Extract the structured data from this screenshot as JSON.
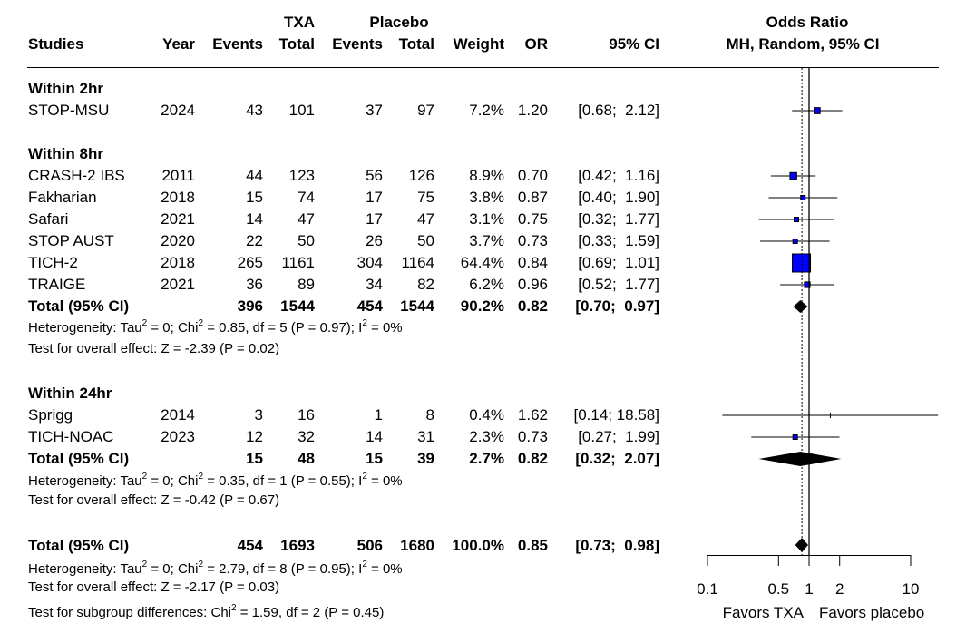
{
  "header": {
    "studies": "Studies",
    "year": "Year",
    "txa_group": "TXA",
    "txa_events": "Events",
    "txa_total": "Total",
    "placebo_group": "Placebo",
    "placebo_events": "Events",
    "placebo_total": "Total",
    "weight": "Weight",
    "or": "OR",
    "ci": "95% CI",
    "plot_title": "Odds Ratio",
    "plot_subtitle": "MH, Random, 95% CI"
  },
  "chart_data": {
    "type": "forest",
    "title": "Odds Ratio",
    "subtitle": "MH, Random, 95% CI",
    "xscale": "log",
    "xlim": [
      0.1,
      10
    ],
    "xticks": [
      "0.1",
      "0.5",
      "1",
      "2",
      "10"
    ],
    "xlabel_left": "Favors TXA",
    "xlabel_right": "Favors placebo",
    "reference_line": 1,
    "pooled_line": 0.85,
    "subgroups": [
      {
        "label": "Within 2hr",
        "studies": [
          {
            "name": "STOP-MSU",
            "year": "2024",
            "e1": "43",
            "n1": "101",
            "e2": "37",
            "n2": "97",
            "weight": "7.2%",
            "or_text": "1.20",
            "ci_text": "[0.68;  2.12]",
            "w": 7.2,
            "or": 1.2,
            "lo": 0.68,
            "hi": 2.12
          }
        ]
      },
      {
        "label": "Within 8hr",
        "studies": [
          {
            "name": "CRASH-2 IBS",
            "year": "2011",
            "e1": "44",
            "n1": "123",
            "e2": "56",
            "n2": "126",
            "weight": "8.9%",
            "or_text": "0.70",
            "ci_text": "[0.42;  1.16]",
            "w": 8.9,
            "or": 0.7,
            "lo": 0.42,
            "hi": 1.16
          },
          {
            "name": "Fakharian",
            "year": "2018",
            "e1": "15",
            "n1": "74",
            "e2": "17",
            "n2": "75",
            "weight": "3.8%",
            "or_text": "0.87",
            "ci_text": "[0.40;  1.90]",
            "w": 3.8,
            "or": 0.87,
            "lo": 0.4,
            "hi": 1.9
          },
          {
            "name": "Safari",
            "year": "2021",
            "e1": "14",
            "n1": "47",
            "e2": "17",
            "n2": "47",
            "weight": "3.1%",
            "or_text": "0.75",
            "ci_text": "[0.32;  1.77]",
            "w": 3.1,
            "or": 0.75,
            "lo": 0.32,
            "hi": 1.77
          },
          {
            "name": "STOP AUST",
            "year": "2020",
            "e1": "22",
            "n1": "50",
            "e2": "26",
            "n2": "50",
            "weight": "3.7%",
            "or_text": "0.73",
            "ci_text": "[0.33;  1.59]",
            "w": 3.7,
            "or": 0.73,
            "lo": 0.33,
            "hi": 1.59
          },
          {
            "name": "TICH-2",
            "year": "2018",
            "e1": "265",
            "n1": "1161",
            "e2": "304",
            "n2": "1164",
            "weight": "64.4%",
            "or_text": "0.84",
            "ci_text": "[0.69;  1.01]",
            "w": 64.4,
            "or": 0.84,
            "lo": 0.69,
            "hi": 1.01
          },
          {
            "name": "TRAIGE",
            "year": "2021",
            "e1": "36",
            "n1": "89",
            "e2": "34",
            "n2": "82",
            "weight": "6.2%",
            "or_text": "0.96",
            "ci_text": "[0.52;  1.77]",
            "w": 6.2,
            "or": 0.96,
            "lo": 0.52,
            "hi": 1.77
          }
        ],
        "total": {
          "label": "Total (95% CI)",
          "e1": "396",
          "n1": "1544",
          "e2": "454",
          "n2": "1544",
          "weight": "90.2%",
          "or_text": "0.82",
          "ci_text": "[0.70;  0.97]",
          "or": 0.82,
          "lo": 0.7,
          "hi": 0.97
        },
        "heterogeneity": {
          "prefix": "Heterogeneity: Tau",
          "a": " = 0; Chi",
          "b": " = 0.85, df = 5 (P = 0.97); I",
          "c": " = 0%",
          "sup": "2"
        },
        "overall": "Test for overall effect: Z = -2.39 (P = 0.02)"
      },
      {
        "label": "Within 24hr",
        "studies": [
          {
            "name": "Sprigg",
            "year": "2014",
            "e1": "3",
            "n1": "16",
            "e2": "1",
            "n2": "8",
            "weight": "0.4%",
            "or_text": "1.62",
            "ci_text": "[0.14; 18.58]",
            "w": 0.4,
            "or": 1.62,
            "lo": 0.14,
            "hi": 18.58
          },
          {
            "name": "TICH-NOAC",
            "year": "2023",
            "e1": "12",
            "n1": "32",
            "e2": "14",
            "n2": "31",
            "weight": "2.3%",
            "or_text": "0.73",
            "ci_text": "[0.27;  1.99]",
            "w": 2.3,
            "or": 0.73,
            "lo": 0.27,
            "hi": 1.99
          }
        ],
        "total": {
          "label": "Total (95% CI)",
          "e1": "15",
          "n1": "48",
          "e2": "15",
          "n2": "39",
          "weight": "2.7%",
          "or_text": "0.82",
          "ci_text": "[0.32;  2.07]",
          "or": 0.82,
          "lo": 0.32,
          "hi": 2.07
        },
        "heterogeneity": {
          "prefix": "Heterogeneity: Tau",
          "a": " = 0; Chi",
          "b": " = 0.35, df = 1 (P = 0.55); I",
          "c": " = 0%",
          "sup": "2"
        },
        "overall": "Test for overall effect: Z = -0.42 (P = 0.67)"
      }
    ],
    "overall_total": {
      "label": "Total (95% CI)",
      "e1": "454",
      "n1": "1693",
      "e2": "506",
      "n2": "1680",
      "weight": "100.0%",
      "or_text": "0.85",
      "ci_text": "[0.73;  0.98]",
      "or": 0.85,
      "lo": 0.73,
      "hi": 0.98
    },
    "overall_heterogeneity": {
      "prefix": "Heterogeneity: Tau",
      "a": " = 0; Chi",
      "b": " = 2.79, df = 8 (P = 0.95); I",
      "c": " = 0%",
      "sup": "2"
    },
    "overall_effect": "Test for overall effect: Z = -2.17 (P = 0.03)",
    "subgroup_test": {
      "prefix": "Test for subgroup differences: Chi",
      "rest": " = 1.59, df = 2 (P = 0.45)",
      "sup": "2"
    }
  },
  "colors": {
    "marker": "#0000ff",
    "line": "#000000"
  }
}
